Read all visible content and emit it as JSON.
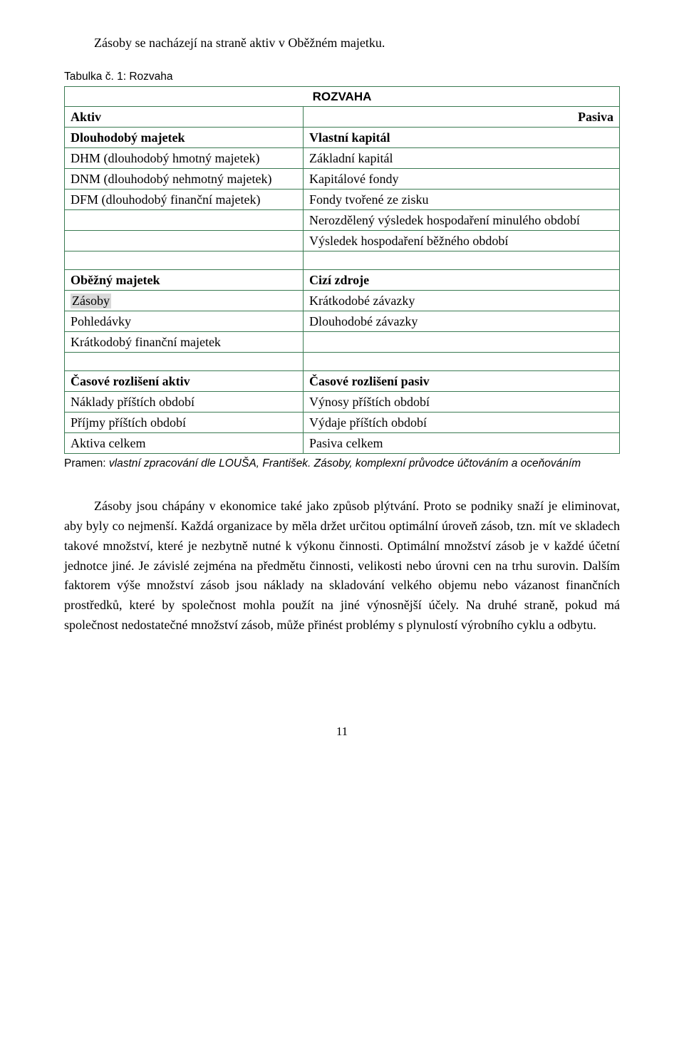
{
  "intro": "Zásoby se nacházejí na straně aktiv v Oběžném majetku.",
  "caption": "Tabulka č. 1: Rozvaha",
  "table": {
    "title": "ROZVAHA",
    "header": {
      "left": "Aktiv",
      "right": "Pasiva"
    },
    "rows": [
      {
        "left_bold": true,
        "left": "Dlouhodobý majetek",
        "right_bold": true,
        "right": "Vlastní kapitál"
      },
      {
        "left": "DHM (dlouhodobý hmotný majetek)",
        "right": "Základní kapitál"
      },
      {
        "left": "DNM (dlouhodobý nehmotný majetek)",
        "right": "Kapitálové fondy"
      },
      {
        "left": "DFM (dlouhodobý finanční majetek)",
        "right": "Fondy tvořené ze zisku"
      },
      {
        "left": "",
        "right": "Nerozdělený výsledek hospodaření minulého období"
      },
      {
        "left": "",
        "right": "Výsledek hospodaření běžného období"
      }
    ],
    "rows2": [
      {
        "left_bold": true,
        "left": "Oběžný majetek",
        "right_bold": true,
        "right": "Cizí zdroje"
      },
      {
        "left_highlight": true,
        "left": "Zásoby",
        "right": "Krátkodobé závazky"
      },
      {
        "left": "Pohledávky",
        "right": "Dlouhodobé závazky"
      },
      {
        "left": "Krátkodobý finanční majetek",
        "right": ""
      }
    ],
    "rows3": [
      {
        "left_bold": true,
        "left": "Časové rozlišení aktiv",
        "right_bold": true,
        "right": "Časové rozlišení pasiv"
      },
      {
        "left": "Náklady příštích období",
        "right": "Výnosy příštích období"
      },
      {
        "left": "Příjmy příštích období",
        "right": "Výdaje příštích období"
      },
      {
        "left": "Aktiva celkem",
        "right": "Pasiva celkem"
      }
    ]
  },
  "pramen_start": "Pramen: ",
  "pramen_rest": "vlastní zpracování dle LOUŠA, František. Zásoby, komplexní průvodce účtováním a oceňováním",
  "body": "Zásoby jsou chápány v ekonomice také jako způsob plýtvání. Proto se podniky snaží je eliminovat, aby byly co nejmenší. Každá organizace by měla držet určitou optimální úroveň zásob, tzn. mít ve skladech takové množství, které je nezbytně nutné k výkonu činnosti. Optimální množství zásob je v každé účetní jednotce jiné. Je závislé zejména na předmětu činnosti, velikosti nebo úrovni cen na trhu surovin. Dalším faktorem výše množství zásob jsou náklady na skladování velkého objemu nebo vázanost finančních prostředků, které by společnost mohla použít na jiné výnosnější účely. Na druhé straně, pokud má společnost nedostatečné množství zásob, může přinést problémy s plynulostí výrobního cyklu a odbytu.",
  "page": "11",
  "colors": {
    "table_border": "#3a7a52",
    "highlight_bg": "#d9d9d9",
    "text": "#000000",
    "bg": "#ffffff"
  }
}
